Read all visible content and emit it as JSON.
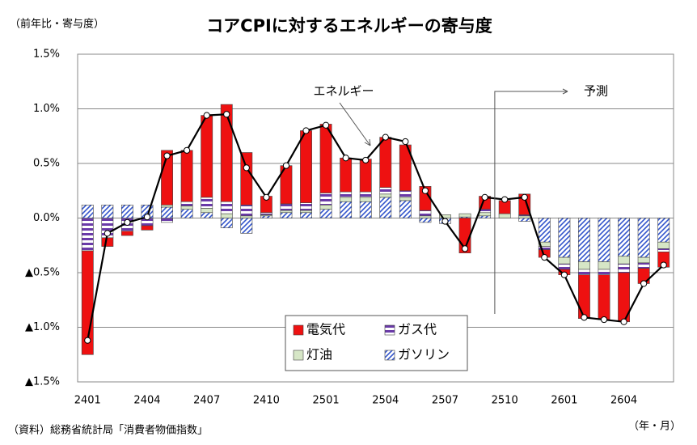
{
  "chart_data": {
    "type": "stacked-bar-line",
    "title": "コアCPIに対するエネルギーの寄与度",
    "y_label": "（前年比・寄与度）",
    "x_label": "（年・月）",
    "source": "（資料）総務省統計局「消費者物価指数」",
    "forecast_label": "予測",
    "categories": [
      "2401",
      null,
      null,
      "2404",
      null,
      null,
      "2407",
      null,
      null,
      "2410",
      null,
      null,
      "2501",
      null,
      null,
      "2504",
      null,
      null,
      "2507",
      null,
      null,
      "2510",
      null,
      null,
      "2601",
      null,
      null,
      "2604",
      null,
      null
    ],
    "series": [
      {
        "name": "ガソリン",
        "color": "#3355cc",
        "hatch": "diagonal",
        "values": [
          0.12,
          0.12,
          0.12,
          0.12,
          0.1,
          0.08,
          0.05,
          -0.09,
          -0.14,
          0.02,
          0.05,
          0.05,
          0.08,
          0.15,
          0.15,
          0.19,
          0.16,
          -0.04,
          -0.05,
          0.01,
          0.02,
          0.0,
          -0.03,
          -0.22,
          -0.36,
          -0.4,
          -0.4,
          -0.35,
          -0.36,
          -0.22
        ]
      },
      {
        "name": "灯油",
        "color": "#d6e6c6",
        "hatch": "none",
        "values": [
          0.0,
          0.0,
          0.0,
          0.0,
          0.02,
          0.03,
          0.04,
          0.04,
          0.02,
          0.01,
          0.02,
          0.02,
          0.04,
          0.04,
          0.04,
          0.03,
          0.03,
          0.02,
          0.03,
          0.03,
          0.03,
          0.04,
          0.02,
          -0.04,
          -0.06,
          -0.07,
          -0.07,
          -0.07,
          -0.05,
          -0.06
        ]
      },
      {
        "name": "ガス代",
        "color": "#6a3aa8",
        "hatch": "horizontal",
        "values": [
          -0.3,
          -0.18,
          -0.12,
          -0.07,
          -0.04,
          0.04,
          0.1,
          0.11,
          0.1,
          0.02,
          0.06,
          0.07,
          0.11,
          0.05,
          0.05,
          0.06,
          0.06,
          0.05,
          0.0,
          0.0,
          0.03,
          0.0,
          0.01,
          -0.03,
          -0.05,
          -0.05,
          -0.05,
          -0.08,
          -0.05,
          -0.03
        ]
      },
      {
        "name": "電気代",
        "color": "#ee1111",
        "hatch": "none",
        "values": [
          -0.95,
          -0.08,
          -0.04,
          -0.04,
          0.5,
          0.47,
          0.75,
          0.89,
          0.48,
          0.15,
          0.35,
          0.66,
          0.63,
          0.31,
          0.3,
          0.46,
          0.42,
          0.22,
          0.0,
          -0.32,
          0.12,
          0.12,
          0.19,
          -0.07,
          -0.05,
          -0.4,
          -0.41,
          -0.45,
          -0.14,
          -0.14
        ]
      }
    ],
    "line": {
      "name": "エネルギー",
      "color": "#000000",
      "values": [
        -1.12,
        -0.14,
        -0.04,
        0.01,
        0.57,
        0.62,
        0.94,
        0.95,
        0.46,
        0.19,
        0.48,
        0.8,
        0.85,
        0.55,
        0.53,
        0.74,
        0.7,
        0.25,
        -0.03,
        -0.28,
        0.19,
        0.17,
        0.19,
        -0.36,
        -0.52,
        -0.91,
        -0.93,
        -0.95,
        -0.6,
        -0.43
      ]
    },
    "forecast_start": 21,
    "ylim": [
      -1.5,
      1.5
    ],
    "yticks": [
      {
        "value": -1.5,
        "label": "▲1.5%"
      },
      {
        "value": -1.0,
        "label": "▲1.0%"
      },
      {
        "value": -0.5,
        "label": "▲0.5%"
      },
      {
        "value": 0,
        "label": "0.0%"
      },
      {
        "value": 0.5,
        "label": "0.5%"
      },
      {
        "value": 1.0,
        "label": "1.0%"
      },
      {
        "value": 1.5,
        "label": "1.5%"
      }
    ],
    "grid": true
  }
}
